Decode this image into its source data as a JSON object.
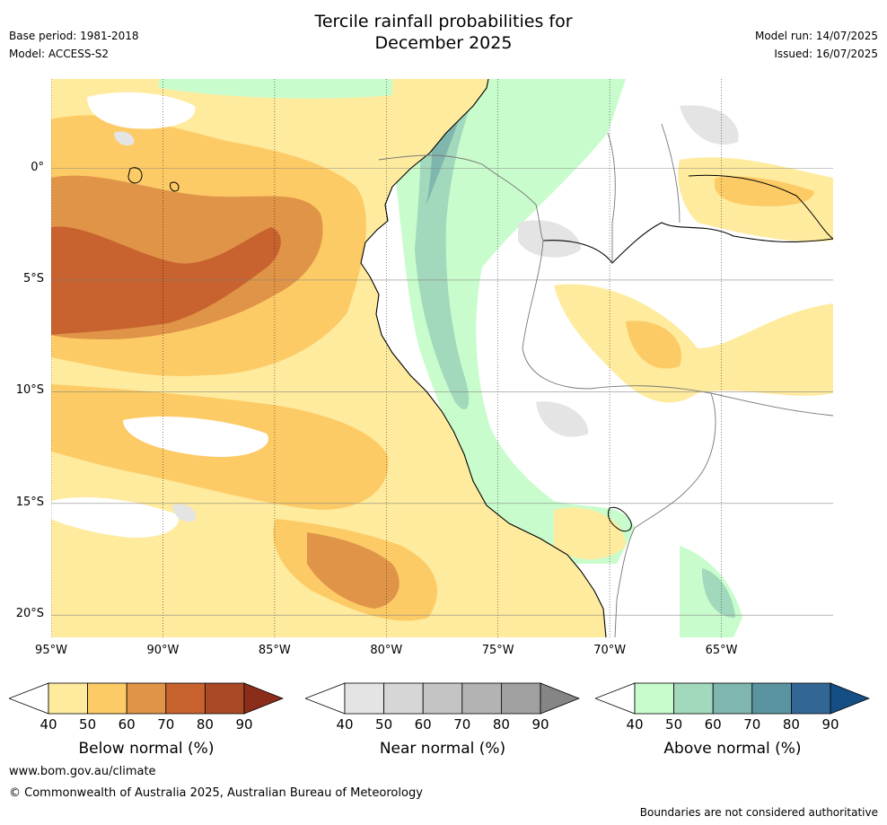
{
  "title": {
    "line1": "Tercile rainfall probabilities for",
    "line2": "December 2025"
  },
  "meta": {
    "base_period": "Base period: 1981-2018",
    "model": "Model: ACCESS-S2",
    "model_run": "Model run: 14/07/2025",
    "issued": "Issued: 16/07/2025"
  },
  "axes": {
    "lon_ticks": [
      "95°W",
      "90°W",
      "85°W",
      "80°W",
      "75°W",
      "70°W",
      "65°W"
    ],
    "lon_values": [
      -95,
      -90,
      -85,
      -80,
      -75,
      -70,
      -65
    ],
    "lat_ticks": [
      "0°",
      "5°S",
      "10°S",
      "15°S",
      "20°S"
    ],
    "lat_values": [
      0,
      -5,
      -10,
      -15,
      -20
    ],
    "lon_range": [
      -95,
      -60
    ],
    "lat_range": [
      -21,
      4
    ]
  },
  "colorbars": [
    {
      "label": "Below normal (%)",
      "ticks": [
        "40",
        "50",
        "60",
        "70",
        "80",
        "90"
      ],
      "colors": [
        "#ffffff",
        "#feeb9e",
        "#fdcb66",
        "#e09448",
        "#c8622f",
        "#a94a25",
        "#8b2d1a"
      ]
    },
    {
      "label": "Near normal (%)",
      "ticks": [
        "40",
        "50",
        "60",
        "70",
        "80",
        "90"
      ],
      "colors": [
        "#ffffff",
        "#e4e4e4",
        "#d6d6d6",
        "#c4c4c4",
        "#b3b3b3",
        "#a0a0a0",
        "#858585"
      ]
    },
    {
      "label": "Above normal (%)",
      "ticks": [
        "40",
        "50",
        "60",
        "70",
        "80",
        "90"
      ],
      "colors": [
        "#ffffff",
        "#c9fccc",
        "#a2d8bb",
        "#7fb7ae",
        "#5b94a1",
        "#326795",
        "#144e85"
      ]
    }
  ],
  "footer": {
    "url": "www.bom.gov.au/climate",
    "copyright": "© Commonwealth of Australia 2025, Australian Bureau of Meteorology",
    "disclaimer": "Boundaries are not considered authoritative"
  }
}
